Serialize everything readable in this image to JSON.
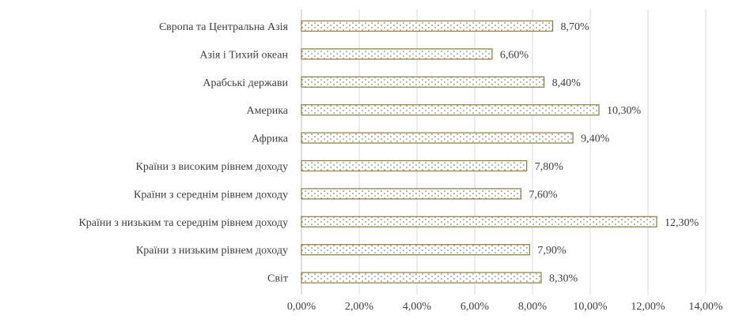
{
  "chart_data": {
    "type": "bar",
    "orientation": "horizontal",
    "title": "",
    "xlabel": "",
    "ylabel": "",
    "categories": [
      "Європа та Центральна Азія",
      "Азія і Тихий океан",
      "Арабські держави",
      "Америка",
      "Африка",
      "Країни з високим рівнем доходу",
      "Країни з середнім рівнем доходу",
      "Країни з низьким та середнім рівнем доходу",
      "Країни з низьким рівнем доходу",
      "Світ"
    ],
    "values": [
      8.7,
      6.6,
      8.4,
      10.3,
      9.4,
      7.8,
      7.6,
      12.3,
      7.9,
      8.3
    ],
    "value_labels": [
      "8,70%",
      "6,60%",
      "8,40%",
      "10,30%",
      "9,40%",
      "7,80%",
      "7,60%",
      "12,30%",
      "7,90%",
      "8,30%"
    ],
    "xlim": [
      0,
      14
    ],
    "x_ticks": [
      0,
      2,
      4,
      6,
      8,
      10,
      12,
      14
    ],
    "x_tick_labels": [
      "0,00%",
      "2,00%",
      "4,00%",
      "6,00%",
      "8,00%",
      "10,00%",
      "12,00%",
      "14,00%"
    ],
    "grid": true,
    "legend": "none",
    "bar_pattern": "dotted",
    "colors": {
      "bar_fill": "#ffffff",
      "bar_border": "#8b7d3a",
      "bar_dots": "#5a5a5a",
      "grid": "#d9d9d9",
      "text": "#404040"
    }
  }
}
